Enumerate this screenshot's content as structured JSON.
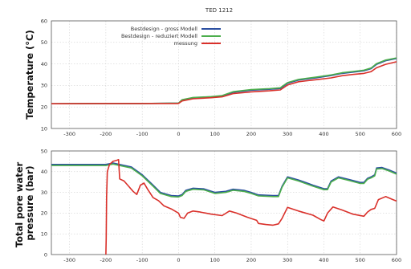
{
  "chart_data": [
    {
      "type": "line",
      "title": "TED 1212",
      "ylabel": "Temperature (°C)",
      "xlim": [
        -350,
        600
      ],
      "ylim": [
        10,
        60
      ],
      "xticks": [
        "-300",
        "-200",
        "-100",
        "0",
        "100",
        "200",
        "300",
        "400",
        "500",
        "600"
      ],
      "yticks": [
        "10",
        "20",
        "30",
        "40",
        "50",
        "60"
      ],
      "grid": true,
      "legend": "top-center",
      "series": [
        {
          "name": "Bestdesign - gross Modell",
          "color": "#2b4fa0",
          "points": [
            [
              -350,
              21.5
            ],
            [
              -200,
              21.6
            ],
            [
              -100,
              21.6
            ],
            [
              0,
              21.8
            ],
            [
              10,
              23.2
            ],
            [
              40,
              24.2
            ],
            [
              90,
              24.6
            ],
            [
              120,
              25.0
            ],
            [
              150,
              26.8
            ],
            [
              200,
              27.8
            ],
            [
              250,
              28.2
            ],
            [
              280,
              28.6
            ],
            [
              300,
              31.0
            ],
            [
              330,
              32.5
            ],
            [
              380,
              33.6
            ],
            [
              420,
              34.6
            ],
            [
              450,
              35.6
            ],
            [
              480,
              36.2
            ],
            [
              510,
              36.8
            ],
            [
              530,
              37.8
            ],
            [
              545,
              39.8
            ],
            [
              570,
              41.5
            ],
            [
              600,
              42.5
            ]
          ]
        },
        {
          "name": "Bestdesign - reduziert Modell",
          "color": "#4cae4c",
          "points": [
            [
              -350,
              21.5
            ],
            [
              -200,
              21.6
            ],
            [
              -100,
              21.6
            ],
            [
              0,
              21.8
            ],
            [
              10,
              23.4
            ],
            [
              40,
              24.4
            ],
            [
              90,
              24.8
            ],
            [
              120,
              25.3
            ],
            [
              150,
              27.1
            ],
            [
              200,
              28.1
            ],
            [
              250,
              28.5
            ],
            [
              280,
              28.9
            ],
            [
              300,
              31.3
            ],
            [
              330,
              32.8
            ],
            [
              380,
              33.9
            ],
            [
              420,
              34.9
            ],
            [
              450,
              35.9
            ],
            [
              480,
              36.5
            ],
            [
              510,
              37.1
            ],
            [
              530,
              38.1
            ],
            [
              545,
              40.1
            ],
            [
              570,
              41.8
            ],
            [
              600,
              42.8
            ]
          ]
        },
        {
          "name": "messung",
          "color": "#d9302a",
          "points": [
            [
              -350,
              21.5
            ],
            [
              -200,
              21.6
            ],
            [
              -100,
              21.6
            ],
            [
              0,
              21.6
            ],
            [
              10,
              22.8
            ],
            [
              40,
              23.8
            ],
            [
              90,
              24.3
            ],
            [
              120,
              24.7
            ],
            [
              150,
              26.2
            ],
            [
              200,
              27.0
            ],
            [
              250,
              27.5
            ],
            [
              280,
              27.9
            ],
            [
              300,
              30.2
            ],
            [
              330,
              31.7
            ],
            [
              380,
              32.7
            ],
            [
              420,
              33.5
            ],
            [
              450,
              34.5
            ],
            [
              480,
              35.1
            ],
            [
              510,
              35.6
            ],
            [
              530,
              36.4
            ],
            [
              545,
              38.2
            ],
            [
              570,
              39.8
            ],
            [
              600,
              41.0
            ]
          ]
        }
      ]
    },
    {
      "type": "line",
      "ylabel": "Total pore water pressure (bar)",
      "ylabel_lines": [
        "Total pore water",
        "pressure (bar)"
      ],
      "xlim": [
        -350,
        600
      ],
      "ylim": [
        0,
        50
      ],
      "xticks": [
        "-300",
        "-200",
        "-100",
        "0",
        "100",
        "200",
        "300",
        "400",
        "500",
        "600"
      ],
      "yticks": [
        "0",
        "10",
        "20",
        "30",
        "40",
        "50"
      ],
      "grid": true,
      "series": [
        {
          "name": "Bestdesign - gross Modell",
          "color": "#2b4fa0",
          "points": [
            [
              -350,
              43.5
            ],
            [
              -250,
              43.5
            ],
            [
              -200,
              43.5
            ],
            [
              -180,
              44.2
            ],
            [
              -160,
              43.4
            ],
            [
              -130,
              42.3
            ],
            [
              -100,
              38.5
            ],
            [
              -70,
              33.5
            ],
            [
              -50,
              30.0
            ],
            [
              -20,
              28.5
            ],
            [
              0,
              28.3
            ],
            [
              10,
              29.0
            ],
            [
              20,
              31.0
            ],
            [
              40,
              32.0
            ],
            [
              70,
              31.7
            ],
            [
              100,
              30.0
            ],
            [
              130,
              30.5
            ],
            [
              150,
              31.5
            ],
            [
              180,
              31.0
            ],
            [
              200,
              30.0
            ],
            [
              220,
              28.8
            ],
            [
              260,
              28.5
            ],
            [
              275,
              28.5
            ],
            [
              285,
              33.0
            ],
            [
              300,
              37.5
            ],
            [
              330,
              36.0
            ],
            [
              370,
              33.5
            ],
            [
              400,
              31.8
            ],
            [
              410,
              31.8
            ],
            [
              420,
              35.5
            ],
            [
              440,
              37.5
            ],
            [
              470,
              36.2
            ],
            [
              500,
              34.8
            ],
            [
              510,
              34.8
            ],
            [
              520,
              36.8
            ],
            [
              530,
              37.5
            ],
            [
              540,
              38.5
            ],
            [
              545,
              41.8
            ],
            [
              560,
              42.0
            ],
            [
              580,
              40.8
            ],
            [
              600,
              39.3
            ]
          ]
        },
        {
          "name": "Bestdesign - reduziert Modell",
          "color": "#4cae4c",
          "points": [
            [
              -350,
              43.0
            ],
            [
              -250,
              43.0
            ],
            [
              -200,
              43.0
            ],
            [
              -180,
              43.7
            ],
            [
              -160,
              42.9
            ],
            [
              -130,
              41.8
            ],
            [
              -100,
              38.0
            ],
            [
              -70,
              33.0
            ],
            [
              -50,
              29.5
            ],
            [
              -20,
              28.0
            ],
            [
              0,
              27.8
            ],
            [
              10,
              28.5
            ],
            [
              20,
              30.5
            ],
            [
              40,
              31.5
            ],
            [
              70,
              31.2
            ],
            [
              100,
              29.5
            ],
            [
              130,
              30.0
            ],
            [
              150,
              31.0
            ],
            [
              180,
              30.5
            ],
            [
              200,
              29.5
            ],
            [
              220,
              28.3
            ],
            [
              260,
              28.0
            ],
            [
              275,
              28.0
            ],
            [
              285,
              32.5
            ],
            [
              300,
              37.0
            ],
            [
              330,
              35.5
            ],
            [
              370,
              33.0
            ],
            [
              400,
              31.3
            ],
            [
              410,
              31.3
            ],
            [
              420,
              35.0
            ],
            [
              440,
              37.0
            ],
            [
              470,
              35.7
            ],
            [
              500,
              34.3
            ],
            [
              510,
              34.3
            ],
            [
              520,
              36.3
            ],
            [
              530,
              37.0
            ],
            [
              540,
              38.0
            ],
            [
              545,
              41.3
            ],
            [
              560,
              41.5
            ],
            [
              580,
              40.3
            ],
            [
              600,
              38.8
            ]
          ]
        },
        {
          "name": "messung",
          "color": "#d9302a",
          "points": [
            [
              -200,
              0
            ],
            [
              -199,
              8
            ],
            [
              -198,
              28
            ],
            [
              -196,
              40
            ],
            [
              -190,
              43.5
            ],
            [
              -180,
              45.0
            ],
            [
              -170,
              45.5
            ],
            [
              -165,
              45.8
            ],
            [
              -162,
              36.5
            ],
            [
              -150,
              35.5
            ],
            [
              -140,
              33.5
            ],
            [
              -125,
              30.5
            ],
            [
              -115,
              29.0
            ],
            [
              -105,
              33.5
            ],
            [
              -95,
              34.5
            ],
            [
              -85,
              31.5
            ],
            [
              -70,
              27.5
            ],
            [
              -55,
              26.0
            ],
            [
              -40,
              23.5
            ],
            [
              -20,
              22.0
            ],
            [
              0,
              20.0
            ],
            [
              5,
              18.0
            ],
            [
              15,
              17.5
            ],
            [
              25,
              20.0
            ],
            [
              40,
              21.0
            ],
            [
              60,
              20.5
            ],
            [
              90,
              19.5
            ],
            [
              120,
              18.8
            ],
            [
              140,
              21.0
            ],
            [
              160,
              20.0
            ],
            [
              190,
              18.0
            ],
            [
              215,
              16.5
            ],
            [
              220,
              15.0
            ],
            [
              240,
              14.5
            ],
            [
              260,
              14.2
            ],
            [
              275,
              14.8
            ],
            [
              285,
              17.5
            ],
            [
              300,
              22.8
            ],
            [
              330,
              21.0
            ],
            [
              370,
              19.0
            ],
            [
              390,
              17.0
            ],
            [
              400,
              16.2
            ],
            [
              410,
              20.0
            ],
            [
              425,
              23.0
            ],
            [
              450,
              21.5
            ],
            [
              480,
              19.5
            ],
            [
              510,
              18.5
            ],
            [
              520,
              20.5
            ],
            [
              530,
              21.8
            ],
            [
              540,
              22.3
            ],
            [
              550,
              26.5
            ],
            [
              570,
              28.0
            ],
            [
              590,
              26.5
            ],
            [
              600,
              25.8
            ]
          ]
        }
      ]
    }
  ]
}
